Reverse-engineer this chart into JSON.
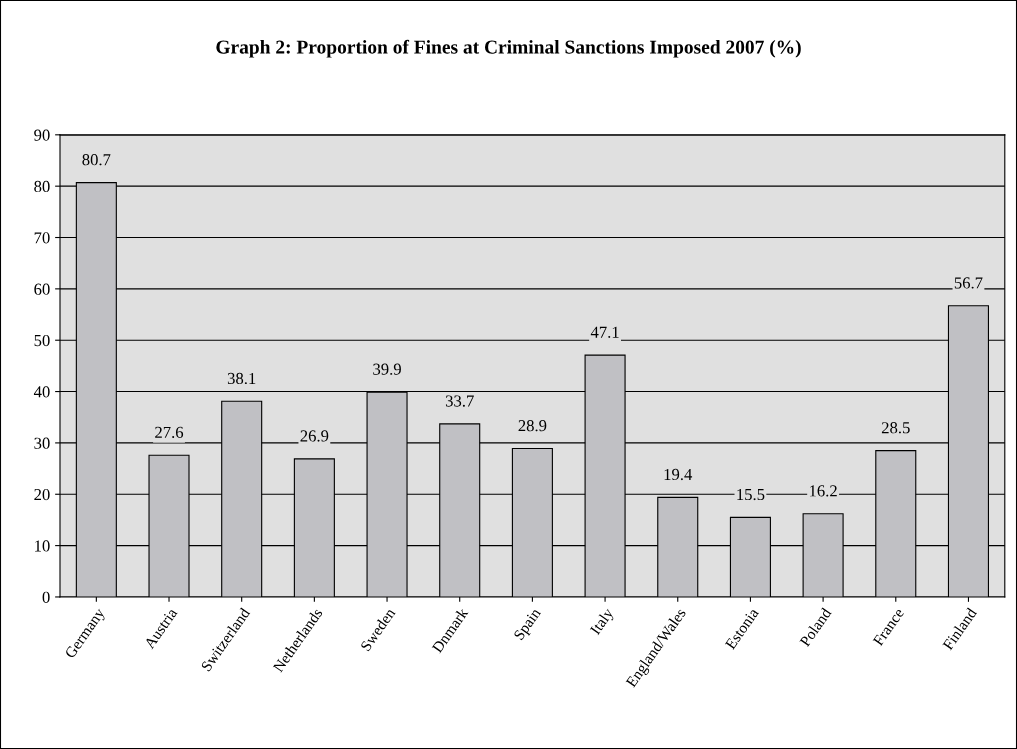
{
  "chart_data": {
    "type": "bar",
    "title": "Graph 2: Proportion of Fines at Criminal Sanctions Imposed 2007 (%)",
    "categories": [
      "Germany",
      "Austria",
      "Switzerland",
      "Netherlands",
      "Sweden",
      "Dnmark",
      "Spain",
      "Italy",
      "England/Wales",
      "Estonia",
      "Poland",
      "France",
      "Finland"
    ],
    "values": [
      80.7,
      27.6,
      38.1,
      26.9,
      39.9,
      33.7,
      28.9,
      47.1,
      19.4,
      15.5,
      16.2,
      28.5,
      56.7
    ],
    "color": "#c0c0c4",
    "ylim": [
      0,
      90
    ],
    "yticks": [
      0,
      10,
      20,
      30,
      40,
      50,
      60,
      70,
      80,
      90
    ],
    "grid": "y",
    "data_labels": true,
    "legend": false
  }
}
